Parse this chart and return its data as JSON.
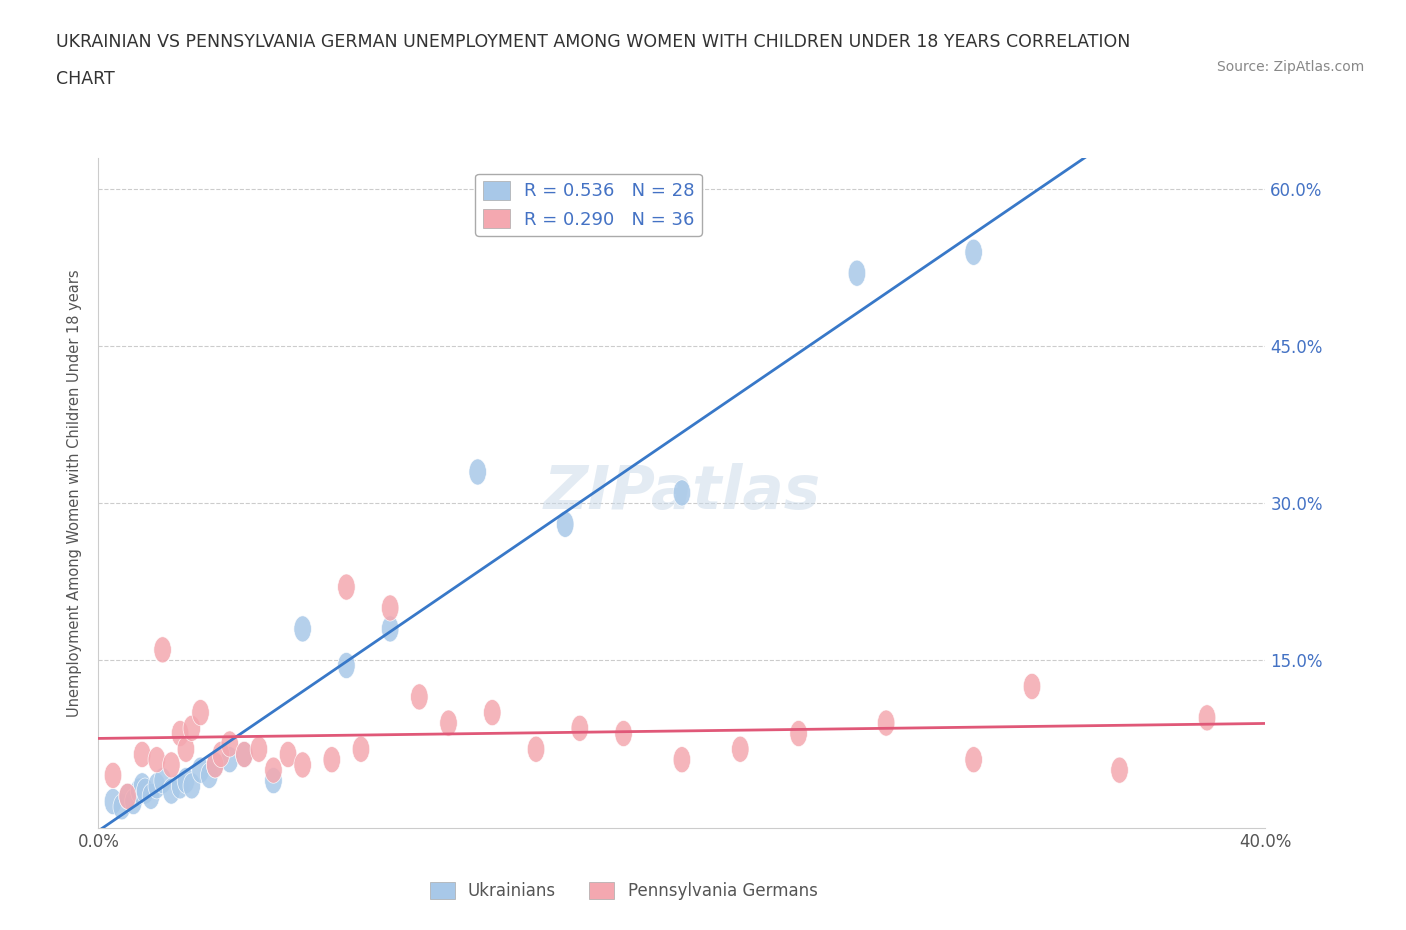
{
  "title_line1": "UKRAINIAN VS PENNSYLVANIA GERMAN UNEMPLOYMENT AMONG WOMEN WITH CHILDREN UNDER 18 YEARS CORRELATION",
  "title_line2": "CHART",
  "source": "Source: ZipAtlas.com",
  "ylabel": "Unemployment Among Women with Children Under 18 years",
  "xlim": [
    0.0,
    0.4
  ],
  "ylim": [
    -0.01,
    0.63
  ],
  "xticks": [
    0.0,
    0.1,
    0.2,
    0.3,
    0.4
  ],
  "xticklabels": [
    "0.0%",
    "",
    "",
    "",
    "40.0%"
  ],
  "yticks": [
    0.15,
    0.3,
    0.45,
    0.6
  ],
  "yticklabels": [
    "15.0%",
    "30.0%",
    "45.0%",
    "60.0%"
  ],
  "grid_color": "#cccccc",
  "background_color": "#ffffff",
  "ukrainian_color": "#a8c8e8",
  "pa_german_color": "#f4a8b0",
  "ukrainian_line_color": "#3878c8",
  "pa_german_line_color": "#e05878",
  "R_ukrainian": 0.536,
  "N_ukrainian": 28,
  "R_pa_german": 0.29,
  "N_pa_german": 36,
  "watermark": "ZIPatlas",
  "ukrainian_scatter_x": [
    0.005,
    0.008,
    0.01,
    0.012,
    0.014,
    0.015,
    0.016,
    0.018,
    0.02,
    0.022,
    0.025,
    0.028,
    0.03,
    0.032,
    0.035,
    0.038,
    0.04,
    0.045,
    0.05,
    0.06,
    0.07,
    0.085,
    0.1,
    0.13,
    0.16,
    0.2,
    0.26,
    0.3
  ],
  "ukrainian_scatter_y": [
    0.015,
    0.01,
    0.02,
    0.015,
    0.025,
    0.03,
    0.025,
    0.02,
    0.03,
    0.035,
    0.025,
    0.03,
    0.035,
    0.03,
    0.045,
    0.04,
    0.05,
    0.055,
    0.06,
    0.035,
    0.18,
    0.145,
    0.18,
    0.33,
    0.28,
    0.31,
    0.52,
    0.54
  ],
  "pa_german_scatter_x": [
    0.005,
    0.01,
    0.015,
    0.02,
    0.022,
    0.025,
    0.028,
    0.03,
    0.032,
    0.035,
    0.04,
    0.042,
    0.045,
    0.05,
    0.055,
    0.06,
    0.065,
    0.07,
    0.08,
    0.085,
    0.09,
    0.1,
    0.11,
    0.12,
    0.135,
    0.15,
    0.165,
    0.18,
    0.2,
    0.22,
    0.24,
    0.27,
    0.3,
    0.32,
    0.35,
    0.38
  ],
  "pa_german_scatter_y": [
    0.04,
    0.02,
    0.06,
    0.055,
    0.16,
    0.05,
    0.08,
    0.065,
    0.085,
    0.1,
    0.05,
    0.06,
    0.07,
    0.06,
    0.065,
    0.045,
    0.06,
    0.05,
    0.055,
    0.22,
    0.065,
    0.2,
    0.115,
    0.09,
    0.1,
    0.065,
    0.085,
    0.08,
    0.055,
    0.065,
    0.08,
    0.09,
    0.055,
    0.125,
    0.045,
    0.095
  ]
}
